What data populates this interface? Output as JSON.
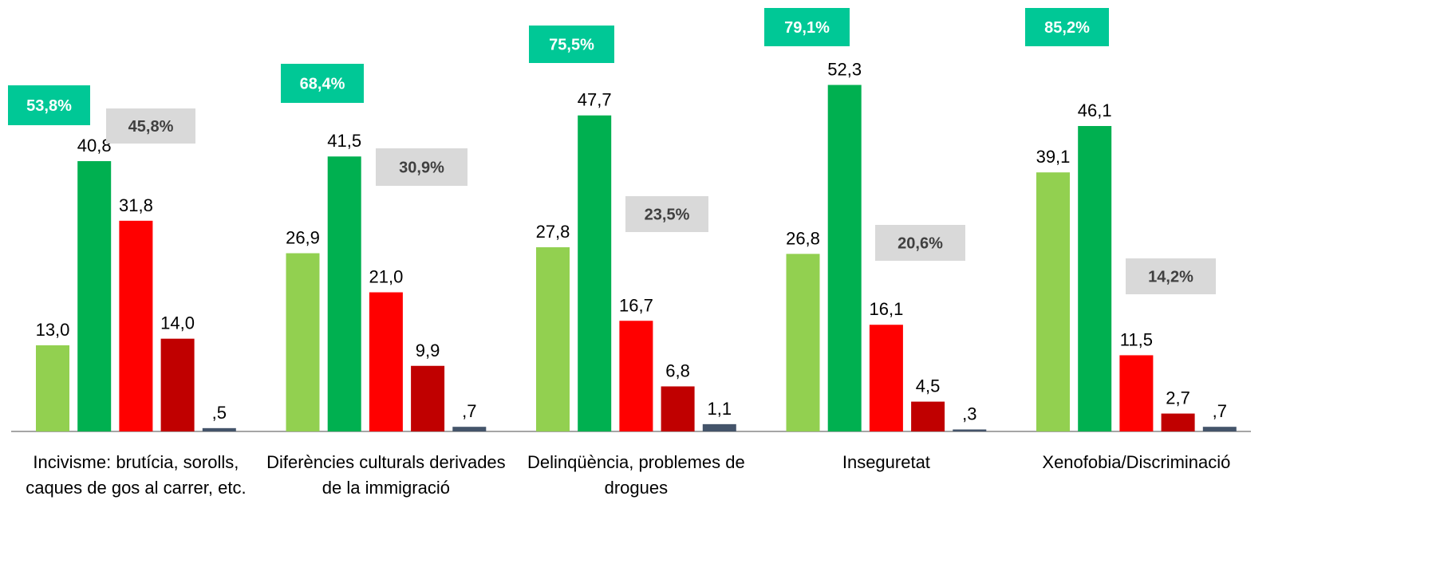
{
  "chart_data": {
    "type": "bar",
    "categories": [
      "Incivisme: brutícia, sorolls, caques de gos al carrer, etc.",
      "Diferències culturals derivades de la immigració",
      "Delinqüència, problemes de drogues",
      "Inseguretat",
      "Xenofobia/Discriminació"
    ],
    "series": [
      {
        "color": "#92d050",
        "values": [
          13.0,
          26.9,
          27.8,
          26.8,
          39.1
        ],
        "value_labels": [
          "13,0",
          "26,9",
          "27,8",
          "26,8",
          "39,1"
        ]
      },
      {
        "color": "#00b050",
        "values": [
          40.8,
          41.5,
          47.7,
          52.3,
          46.1
        ],
        "value_labels": [
          "40,8",
          "41,5",
          "47,7",
          "52,3",
          "46,1"
        ]
      },
      {
        "color": "#ff0000",
        "values": [
          31.8,
          21.0,
          16.7,
          16.1,
          11.5
        ],
        "value_labels": [
          "31,8",
          "21,0",
          "16,7",
          "16,1",
          "11,5"
        ]
      },
      {
        "color": "#c00000",
        "values": [
          14.0,
          9.9,
          6.8,
          4.5,
          2.7
        ],
        "value_labels": [
          "14,0",
          "9,9",
          "6,8",
          "4,5",
          "2,7"
        ]
      },
      {
        "color": "#44546a",
        "values": [
          0.5,
          0.7,
          1.1,
          0.3,
          0.7
        ],
        "value_labels": [
          ",5",
          ",7",
          "1,1",
          ",3",
          ",7"
        ]
      }
    ],
    "positive_totals": [
      "53,8%",
      "68,4%",
      "75,5%",
      "79,1%",
      "85,2%"
    ],
    "negative_totals": [
      "45,8%",
      "30,9%",
      "23,5%",
      "20,6%",
      "14,2%"
    ],
    "positive_color": "#00c896",
    "negative_color": "#d9d9d9",
    "ylim": [
      0,
      65
    ]
  }
}
